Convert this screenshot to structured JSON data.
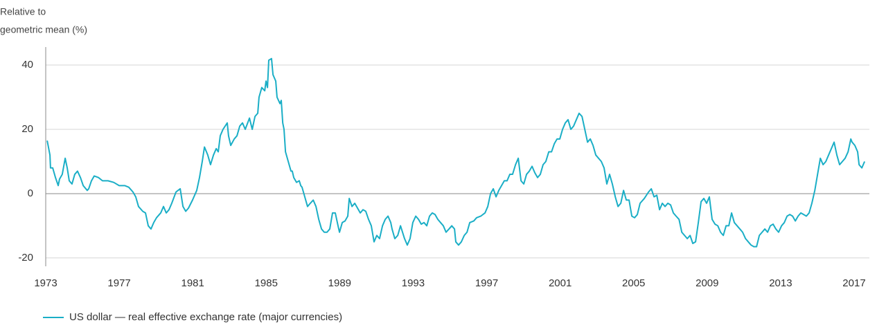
{
  "chart_data": {
    "type": "line",
    "ylabel_lines": [
      "Relative to",
      "geometric mean (%)"
    ],
    "xlim": [
      1973,
      2017.83
    ],
    "xticks": [
      1973,
      1977,
      1981,
      1985,
      1989,
      1993,
      1997,
      2001,
      2005,
      2009,
      2013,
      2017
    ],
    "ylim": [
      -22.6,
      45.6
    ],
    "yticks": [
      -20,
      0,
      20,
      40
    ],
    "grid": true,
    "legend": "bottom-left",
    "series": [
      {
        "name": "US dollar — real effective exchange rate (major currencies)",
        "color": "#1aaec6",
        "x": [
          1973.08,
          1973.23,
          1973.26,
          1973.38,
          1973.53,
          1973.68,
          1973.75,
          1973.9,
          1974.06,
          1974.17,
          1974.28,
          1974.43,
          1974.58,
          1974.73,
          1974.89,
          1975.04,
          1975.26,
          1975.34,
          1975.49,
          1975.64,
          1975.87,
          1976.09,
          1976.39,
          1976.7,
          1977.0,
          1977.3,
          1977.52,
          1977.75,
          1977.9,
          1978.05,
          1978.28,
          1978.43,
          1978.58,
          1978.73,
          1978.88,
          1979.03,
          1979.26,
          1979.41,
          1979.56,
          1979.71,
          1979.86,
          1980.09,
          1980.32,
          1980.47,
          1980.62,
          1980.77,
          1980.99,
          1981.22,
          1981.37,
          1981.52,
          1981.64,
          1981.82,
          1981.97,
          1982.13,
          1982.28,
          1982.39,
          1982.5,
          1982.65,
          1982.88,
          1982.95,
          1983.07,
          1983.26,
          1983.41,
          1983.56,
          1983.71,
          1983.86,
          1984.09,
          1984.24,
          1984.39,
          1984.54,
          1984.61,
          1984.76,
          1984.92,
          1984.99,
          1985.07,
          1985.14,
          1985.29,
          1985.37,
          1985.52,
          1985.59,
          1985.75,
          1985.82,
          1985.9,
          1985.97,
          1986.05,
          1986.2,
          1986.35,
          1986.42,
          1986.5,
          1986.65,
          1986.8,
          1986.88,
          1986.95,
          1987.1,
          1987.25,
          1987.4,
          1987.56,
          1987.71,
          1987.86,
          1988.01,
          1988.16,
          1988.31,
          1988.46,
          1988.61,
          1988.76,
          1988.91,
          1988.99,
          1989.14,
          1989.29,
          1989.44,
          1989.52,
          1989.67,
          1989.82,
          1989.97,
          1990.12,
          1990.27,
          1990.42,
          1990.57,
          1990.72,
          1990.87,
          1991.02,
          1991.17,
          1991.33,
          1991.48,
          1991.63,
          1991.78,
          1991.85,
          1992.0,
          1992.16,
          1992.31,
          1992.53,
          1992.68,
          1992.83,
          1992.98,
          1993.14,
          1993.29,
          1993.44,
          1993.59,
          1993.74,
          1993.89,
          1994.04,
          1994.19,
          1994.34,
          1994.49,
          1994.64,
          1994.79,
          1994.95,
          1995.1,
          1995.25,
          1995.32,
          1995.47,
          1995.62,
          1995.78,
          1995.93,
          1996.08,
          1996.3,
          1996.45,
          1996.68,
          1996.91,
          1997.06,
          1997.21,
          1997.36,
          1997.51,
          1997.66,
          1997.81,
          1997.96,
          1998.11,
          1998.26,
          1998.41,
          1998.57,
          1998.72,
          1998.87,
          1999.02,
          1999.17,
          1999.32,
          1999.47,
          1999.62,
          1999.77,
          1999.92,
          2000.07,
          2000.22,
          2000.38,
          2000.53,
          2000.68,
          2000.83,
          2000.98,
          2001.13,
          2001.28,
          2001.43,
          2001.58,
          2001.73,
          2001.88,
          2002.03,
          2002.19,
          2002.34,
          2002.49,
          2002.64,
          2002.79,
          2002.94,
          2003.09,
          2003.24,
          2003.39,
          2003.54,
          2003.69,
          2003.84,
          2004.0,
          2004.15,
          2004.3,
          2004.45,
          2004.6,
          2004.75,
          2004.9,
          2005.05,
          2005.2,
          2005.35,
          2005.58,
          2005.81,
          2005.96,
          2006.11,
          2006.26,
          2006.41,
          2006.56,
          2006.71,
          2006.86,
          2007.01,
          2007.16,
          2007.31,
          2007.47,
          2007.62,
          2007.77,
          2007.92,
          2008.07,
          2008.22,
          2008.37,
          2008.52,
          2008.67,
          2008.82,
          2008.97,
          2009.12,
          2009.27,
          2009.43,
          2009.58,
          2009.73,
          2009.88,
          2010.03,
          2010.18,
          2010.33,
          2010.48,
          2010.63,
          2010.78,
          2010.93,
          2011.09,
          2011.24,
          2011.39,
          2011.54,
          2011.69,
          2011.84,
          2011.99,
          2012.14,
          2012.29,
          2012.44,
          2012.59,
          2012.74,
          2012.89,
          2013.05,
          2013.2,
          2013.35,
          2013.5,
          2013.65,
          2013.8,
          2013.95,
          2014.1,
          2014.25,
          2014.4,
          2014.55,
          2014.7,
          2014.86,
          2015.01,
          2015.16,
          2015.31,
          2015.46,
          2015.61,
          2015.76,
          2015.91,
          2016.06,
          2016.21,
          2016.36,
          2016.51,
          2016.67,
          2016.82,
          2016.89,
          2017.04,
          2017.19,
          2017.27,
          2017.42,
          2017.57
        ],
        "values": [
          16.5,
          12,
          8,
          8,
          5,
          2.5,
          4.5,
          6,
          11,
          8,
          4,
          3,
          6,
          7,
          5,
          2.5,
          1,
          1.5,
          4,
          5.5,
          5,
          4,
          4,
          3.5,
          2.5,
          2.5,
          2,
          0.5,
          -1,
          -4,
          -5.5,
          -6,
          -10,
          -11,
          -9,
          -7.5,
          -6,
          -4,
          -6,
          -5,
          -3,
          0.5,
          1.5,
          -4,
          -5.5,
          -4.5,
          -2,
          1,
          5,
          10,
          14.5,
          12,
          9,
          12,
          14,
          13,
          18,
          20,
          22,
          18,
          15,
          17,
          18,
          21,
          22,
          20,
          23.5,
          20,
          24,
          25,
          30,
          33,
          32,
          35,
          33,
          41.5,
          42,
          37,
          35,
          30,
          28,
          29,
          22,
          20,
          13,
          10,
          7,
          7,
          5,
          3.5,
          4,
          2.5,
          2,
          -1,
          -4,
          -3,
          -2,
          -4,
          -8,
          -11,
          -12,
          -12,
          -11,
          -6,
          -6,
          -10,
          -12,
          -9,
          -8.5,
          -7,
          -1.5,
          -4,
          -3,
          -4.5,
          -6,
          -5,
          -5.5,
          -8,
          -10,
          -15,
          -13,
          -14,
          -10,
          -8,
          -7,
          -9,
          -11,
          -14,
          -13,
          -10,
          -14,
          -16,
          -14,
          -9,
          -7,
          -8,
          -9.5,
          -9,
          -10,
          -7,
          -6,
          -6.5,
          -8,
          -9,
          -10,
          -12,
          -11,
          -10,
          -11,
          -15,
          -16,
          -15,
          -13,
          -12,
          -9,
          -8.5,
          -7.5,
          -7,
          -6,
          -4,
          0,
          1.5,
          -1,
          1,
          2.5,
          4,
          4,
          6,
          6,
          9,
          11,
          4,
          3,
          6,
          7,
          8.5,
          6.5,
          5,
          6,
          9,
          10,
          13,
          13,
          15.5,
          17,
          17,
          20,
          22,
          23,
          20,
          21,
          23,
          25,
          24,
          20,
          16,
          17,
          15,
          12,
          11,
          10,
          8,
          3,
          6,
          3,
          -1,
          -4,
          -3,
          1,
          -2,
          -2,
          -7,
          -7.5,
          -6.5,
          -3,
          -1.5,
          0.5,
          1.5,
          -1,
          -0.5,
          -5,
          -3,
          -4,
          -3,
          -3.5,
          -6,
          -7,
          -8,
          -12,
          -13,
          -14,
          -13,
          -15.5,
          -15,
          -9,
          -2.5,
          -1.5,
          -3,
          -1,
          -8,
          -9.5,
          -10,
          -12,
          -13,
          -10,
          -10,
          -6,
          -9,
          -10,
          -11,
          -12,
          -14,
          -15,
          -16,
          -16.5,
          -16.5,
          -13,
          -12,
          -11,
          -12,
          -10,
          -9.5,
          -11,
          -12,
          -10,
          -9,
          -7,
          -6.5,
          -7,
          -8.5,
          -7,
          -6,
          -6.5,
          -7,
          -6,
          -3,
          1,
          6,
          11,
          9,
          10,
          12,
          14,
          16,
          12,
          9,
          10,
          11,
          13,
          17,
          16,
          15,
          13,
          9,
          8,
          10
        ]
      }
    ]
  }
}
